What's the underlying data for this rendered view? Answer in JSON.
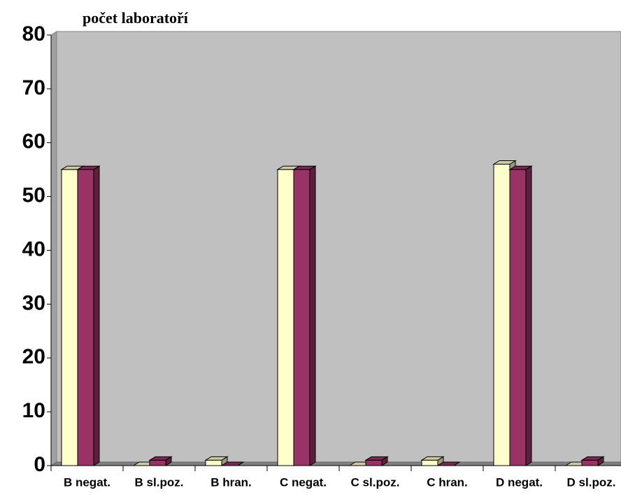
{
  "chart_data": {
    "type": "bar3d",
    "y_label": "počet laboratoří",
    "categories": [
      "B negat.",
      "B sl.poz.",
      "B hran.",
      "C negat.",
      "C sl.poz.",
      "C hran.",
      "D negat.",
      "D sl.poz."
    ],
    "series": [
      {
        "color": "#ffffcc",
        "values": [
          55,
          0,
          1,
          55,
          0,
          1,
          56,
          0
        ]
      },
      {
        "color": "#993366",
        "values": [
          55,
          1,
          0,
          55,
          1,
          0,
          55,
          1
        ]
      }
    ],
    "ylim": [
      0,
      80
    ],
    "yticks": [
      0,
      10,
      20,
      30,
      40,
      50,
      60,
      70,
      80
    ]
  }
}
